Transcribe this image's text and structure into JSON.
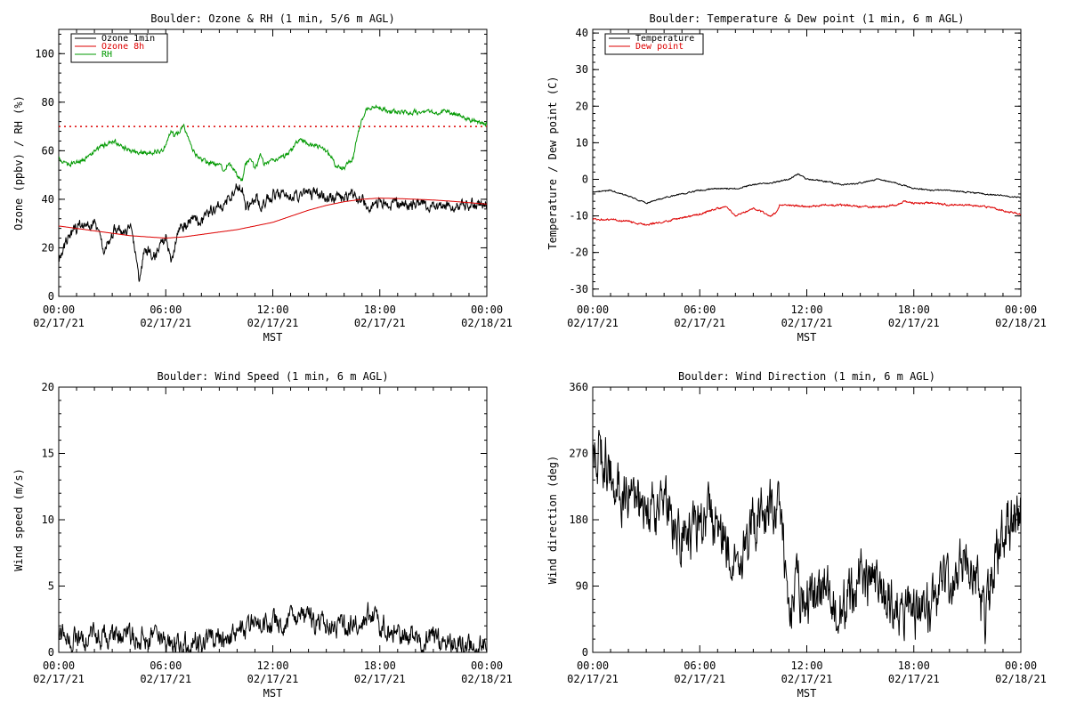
{
  "chart_data": [
    {
      "type": "line",
      "title": "Boulder: Ozone & RH (1 min, 5/6 m AGL)",
      "xlabel": "MST",
      "ylabel": "Ozone (ppbv) / RH (%)",
      "xlim": [
        0,
        24
      ],
      "ylim": [
        0,
        110
      ],
      "yticks": [
        0,
        20,
        40,
        60,
        80,
        100
      ],
      "x_tick_hours": [
        "00:00",
        "06:00",
        "12:00",
        "18:00",
        "00:00"
      ],
      "x_tick_dates": [
        "02/17/21",
        "02/17/21",
        "02/17/21",
        "02/17/21",
        "02/18/21"
      ],
      "legend_position": "top-left",
      "reference_line": {
        "y": 70,
        "color": "#dd0000",
        "style": "dotted"
      },
      "series": [
        {
          "name": "Ozone 1min",
          "color": "#000000",
          "noise": 2,
          "x": [
            0,
            0.5,
            1,
            2,
            2.5,
            3,
            3.5,
            4,
            4.3,
            4.5,
            4.8,
            5,
            5.3,
            5.6,
            6,
            6.3,
            6.8,
            7,
            7.5,
            8,
            8.5,
            9,
            9.5,
            10,
            10.3,
            10.5,
            11,
            11.5,
            12,
            12.5,
            13,
            14,
            15,
            16,
            16.5,
            16.8,
            17,
            17.5,
            18,
            19,
            20,
            21,
            22,
            23,
            24
          ],
          "y": [
            15,
            25,
            28,
            30,
            20,
            26,
            28,
            28,
            20,
            8,
            18,
            20,
            16,
            18,
            25,
            15,
            30,
            28,
            33,
            30,
            35,
            36,
            40,
            45,
            44,
            35,
            40,
            38,
            42,
            43,
            42,
            42,
            41,
            40,
            42,
            38,
            40,
            38,
            39,
            38,
            38,
            38,
            37,
            38,
            38
          ]
        },
        {
          "name": "Ozone 8h",
          "color": "#dd0000",
          "noise": 0,
          "x": [
            0,
            1,
            2,
            3,
            4,
            5,
            6,
            7,
            8,
            9,
            10,
            11,
            12,
            13,
            14,
            15,
            16,
            17,
            18,
            19,
            20,
            21,
            22,
            23,
            24
          ],
          "y": [
            29,
            28,
            27,
            26,
            25,
            24.5,
            24,
            24.5,
            25.5,
            26.5,
            27.5,
            29,
            30.5,
            33,
            35.5,
            37.5,
            39,
            40,
            40.5,
            40.3,
            40,
            39.7,
            39.2,
            38.6,
            38
          ]
        },
        {
          "name": "RH",
          "color": "#009900",
          "noise": 0.8,
          "x": [
            0,
            0.5,
            1,
            1.5,
            2,
            2.5,
            3,
            3.5,
            4,
            4.5,
            5,
            5.5,
            5.8,
            6,
            6.3,
            6.5,
            7,
            7.3,
            7.5,
            8,
            8.5,
            9,
            9.3,
            9.5,
            10,
            10.3,
            10.5,
            10.8,
            11,
            11.3,
            11.5,
            12,
            12.5,
            13,
            13.5,
            14,
            14.5,
            15,
            15.3,
            15.5,
            16,
            16.3,
            16.5,
            16.8,
            17,
            17.3,
            17.5,
            18,
            18.5,
            19,
            20,
            21,
            22,
            23,
            24
          ],
          "y": [
            57,
            54,
            55,
            57,
            60,
            62,
            64,
            62,
            60,
            59,
            59,
            60,
            60,
            62,
            68,
            66,
            70,
            65,
            60,
            56,
            55,
            54,
            52,
            55,
            50,
            48,
            55,
            56,
            52,
            58,
            55,
            56,
            57,
            60,
            65,
            63,
            62,
            60,
            57,
            54,
            53,
            56,
            57,
            68,
            73,
            78,
            78,
            78,
            76,
            76,
            76,
            76,
            76,
            73,
            71
          ]
        }
      ]
    },
    {
      "type": "line",
      "title": "Boulder: Temperature & Dew point (1 min, 6 m AGL)",
      "xlabel": "MST",
      "ylabel": "Temperature / Dew point (C)",
      "xlim": [
        0,
        24
      ],
      "ylim": [
        -32,
        41
      ],
      "yticks": [
        -30,
        -20,
        -10,
        0,
        10,
        20,
        30,
        40
      ],
      "x_tick_hours": [
        "00:00",
        "06:00",
        "12:00",
        "18:00",
        "00:00"
      ],
      "x_tick_dates": [
        "02/17/21",
        "02/17/21",
        "02/17/21",
        "02/17/21",
        "02/18/21"
      ],
      "legend_position": "top-left",
      "series": [
        {
          "name": "Temperature",
          "color": "#000000",
          "noise": 0.15,
          "x": [
            0,
            1,
            2,
            3,
            4,
            5,
            6,
            7,
            8,
            9,
            10,
            11,
            11.5,
            12,
            13,
            14,
            15,
            16,
            17,
            18,
            19,
            20,
            21,
            22,
            23,
            24
          ],
          "y": [
            -3.5,
            -3,
            -4.5,
            -6.5,
            -5,
            -4,
            -3,
            -2.5,
            -2.5,
            -1.5,
            -1,
            0,
            1.5,
            0,
            -0.5,
            -1.5,
            -1,
            0,
            -1,
            -2.5,
            -3,
            -3,
            -3.5,
            -4,
            -4.5,
            -5
          ]
        },
        {
          "name": "Dew point",
          "color": "#dd0000",
          "noise": 0.2,
          "x": [
            0,
            1,
            2,
            3,
            4,
            5,
            6,
            7,
            7.5,
            8,
            8.5,
            9,
            9.5,
            10,
            10.3,
            10.5,
            11,
            12,
            13,
            14,
            15,
            16,
            17,
            17.5,
            18,
            19,
            20,
            21,
            22,
            23,
            24
          ],
          "y": [
            -11,
            -11,
            -11.5,
            -12.5,
            -11.5,
            -10.5,
            -9.5,
            -8,
            -7.5,
            -10,
            -9,
            -8,
            -9,
            -10,
            -9,
            -7,
            -7,
            -7.5,
            -7,
            -7,
            -7.5,
            -7.5,
            -7,
            -6,
            -6.5,
            -6.5,
            -7,
            -7,
            -7.5,
            -8.5,
            -9.5
          ]
        }
      ]
    },
    {
      "type": "line",
      "title": "Boulder: Wind Speed (1 min, 6 m AGL)",
      "xlabel": "MST",
      "ylabel": "Wind speed (m/s)",
      "xlim": [
        0,
        24
      ],
      "ylim": [
        0,
        20
      ],
      "yticks": [
        0,
        5,
        10,
        15,
        20
      ],
      "x_tick_hours": [
        "00:00",
        "06:00",
        "12:00",
        "18:00",
        "00:00"
      ],
      "x_tick_dates": [
        "02/17/21",
        "02/17/21",
        "02/17/21",
        "02/17/21",
        "02/18/21"
      ],
      "series": [
        {
          "name": "",
          "color": "#000000",
          "noise": 0.7,
          "x": [
            0,
            1,
            2,
            3,
            4,
            5,
            6,
            7,
            8,
            9,
            10,
            11,
            12,
            13,
            14,
            15,
            16,
            17,
            17.5,
            18,
            19,
            20,
            21,
            22,
            23,
            24
          ],
          "y": [
            1.5,
            1.0,
            1.2,
            1.0,
            1.0,
            1.2,
            0.8,
            0.5,
            0.8,
            1.0,
            1.5,
            2.0,
            2.2,
            2.5,
            2.5,
            2.0,
            1.8,
            2.5,
            3.0,
            2.0,
            1.5,
            1.0,
            0.8,
            0.6,
            0.6,
            0.5
          ]
        }
      ]
    },
    {
      "type": "line",
      "title": "Boulder: Wind Direction (1 min, 6 m AGL)",
      "xlabel": "MST",
      "ylabel": "Wind direction (deg)",
      "xlim": [
        0,
        24
      ],
      "ylim": [
        0,
        360
      ],
      "yticks": [
        0,
        90,
        180,
        270,
        360
      ],
      "x_tick_hours": [
        "00:00",
        "06:00",
        "12:00",
        "18:00",
        "00:00"
      ],
      "x_tick_dates": [
        "02/17/21",
        "02/17/21",
        "02/17/21",
        "02/17/21",
        "02/18/21"
      ],
      "series": [
        {
          "name": "",
          "color": "#000000",
          "noise": 30,
          "x": [
            0,
            0.5,
            1,
            1.5,
            2,
            3,
            4,
            5,
            6,
            6.5,
            7,
            7.5,
            8,
            8.5,
            9,
            10,
            10.5,
            11,
            11.5,
            12,
            13,
            14,
            15,
            16,
            17,
            18,
            19,
            20,
            21,
            21.5,
            22,
            22.5,
            23,
            24
          ],
          "y": [
            260,
            270,
            240,
            220,
            210,
            190,
            200,
            160,
            170,
            190,
            160,
            150,
            110,
            140,
            180,
            190,
            200,
            60,
            90,
            70,
            80,
            60,
            110,
            90,
            60,
            50,
            60,
            90,
            130,
            100,
            40,
            130,
            160,
            190
          ]
        }
      ]
    }
  ]
}
